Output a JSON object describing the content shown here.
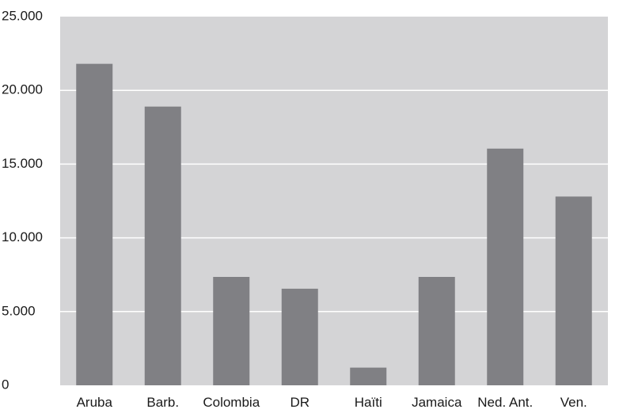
{
  "chart_data": {
    "type": "bar",
    "categories": [
      "Aruba",
      "Barb.",
      "Colombia",
      "DR",
      "Haïti",
      "Jamaica",
      "Ned. Ant.",
      "Ven."
    ],
    "values": [
      21800,
      18900,
      7350,
      6550,
      1200,
      7350,
      16050,
      12800
    ],
    "ylim": [
      0,
      25000
    ],
    "yticks": [
      0,
      5000,
      10000,
      15000,
      20000,
      25000
    ],
    "ytick_labels": [
      "0",
      "5.000",
      "10.000",
      "15.000",
      "20.000",
      "25.000"
    ],
    "grid": true,
    "title": "",
    "xlabel": "",
    "ylabel": "",
    "colors": {
      "plot_background": "#d4d4d6",
      "bar": "#808084",
      "grid": "#ffffff"
    }
  }
}
